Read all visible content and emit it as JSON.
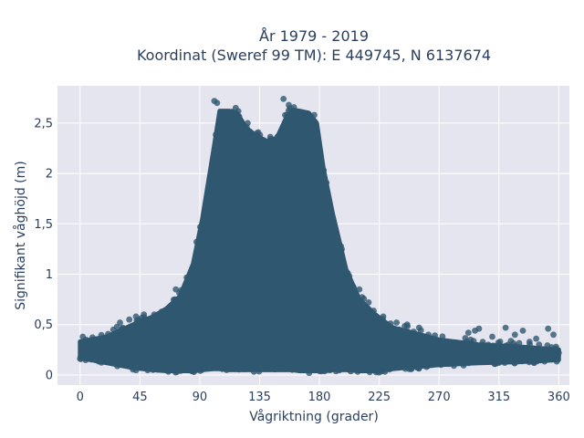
{
  "chart_data": {
    "type": "scatter",
    "title": "År 1979 - 2019",
    "subtitle": "Koordinat (Sweref 99 TM): E 449745, N 6137674",
    "xlabel": "Vågriktning (grader)",
    "ylabel": "Signifikant våghöjd (m)",
    "xlim": [
      -17,
      368
    ],
    "ylim": [
      -0.1,
      2.87
    ],
    "x_ticks": [
      0,
      45,
      90,
      135,
      180,
      225,
      270,
      315,
      360
    ],
    "x_tick_labels": [
      "0",
      "45",
      "90",
      "135",
      "180",
      "225",
      "270",
      "315",
      "360"
    ],
    "y_ticks": [
      0,
      0.5,
      1,
      1.5,
      2,
      2.5
    ],
    "y_tick_labels": [
      "0",
      "0,5",
      "1",
      "1,5",
      "2",
      "2,5"
    ],
    "grid": true,
    "colors": {
      "marker": "#2f5870",
      "plot_background": "#e5e5f0",
      "text": "#2a3f5f"
    },
    "envelope": {
      "x": [
        0,
        20,
        40,
        55,
        65,
        75,
        85,
        92,
        100,
        105,
        112,
        118,
        125,
        132,
        140,
        148,
        155,
        160,
        165,
        172,
        178,
        183,
        190,
        200,
        210,
        222,
        235,
        250,
        270,
        300,
        330,
        360
      ],
      "y_max": [
        0.33,
        0.38,
        0.5,
        0.58,
        0.66,
        0.78,
        1.1,
        1.55,
        2.2,
        2.62,
        2.62,
        2.6,
        2.45,
        2.38,
        2.32,
        2.35,
        2.55,
        2.63,
        2.62,
        2.6,
        2.5,
        2.05,
        1.6,
        1.05,
        0.75,
        0.6,
        0.47,
        0.42,
        0.35,
        0.3,
        0.28,
        0.25
      ],
      "y_min": [
        0.17,
        0.12,
        0.07,
        0.05,
        0.04,
        0.04,
        0.04,
        0.05,
        0.06,
        0.06,
        0.05,
        0.05,
        0.05,
        0.05,
        0.05,
        0.05,
        0.05,
        0.05,
        0.04,
        0.04,
        0.04,
        0.04,
        0.05,
        0.05,
        0.04,
        0.04,
        0.06,
        0.08,
        0.1,
        0.12,
        0.13,
        0.15
      ]
    },
    "outlier_points": [
      {
        "x": 2,
        "y": 0.38
      },
      {
        "x": 8,
        "y": 0.3
      },
      {
        "x": 25,
        "y": 0.45
      },
      {
        "x": 30,
        "y": 0.52
      },
      {
        "x": 37,
        "y": 0.55
      },
      {
        "x": 42,
        "y": 0.58
      },
      {
        "x": 48,
        "y": 0.6
      },
      {
        "x": 72,
        "y": 0.85
      },
      {
        "x": 101,
        "y": 2.72
      },
      {
        "x": 103,
        "y": 2.7
      },
      {
        "x": 117,
        "y": 2.65
      },
      {
        "x": 126,
        "y": 2.5
      },
      {
        "x": 153,
        "y": 2.74
      },
      {
        "x": 157,
        "y": 2.68
      },
      {
        "x": 210,
        "y": 0.85
      },
      {
        "x": 217,
        "y": 0.72
      },
      {
        "x": 228,
        "y": 0.58
      },
      {
        "x": 238,
        "y": 0.52
      },
      {
        "x": 246,
        "y": 0.5
      },
      {
        "x": 255,
        "y": 0.47
      },
      {
        "x": 262,
        "y": 0.4
      },
      {
        "x": 283,
        "y": 0.32
      },
      {
        "x": 292,
        "y": 0.42
      },
      {
        "x": 297,
        "y": 0.44
      },
      {
        "x": 300,
        "y": 0.46
      },
      {
        "x": 310,
        "y": 0.38
      },
      {
        "x": 320,
        "y": 0.47
      },
      {
        "x": 327,
        "y": 0.4
      },
      {
        "x": 333,
        "y": 0.44
      },
      {
        "x": 338,
        "y": 0.33
      },
      {
        "x": 343,
        "y": 0.36
      },
      {
        "x": 352,
        "y": 0.46
      },
      {
        "x": 356,
        "y": 0.4
      },
      {
        "x": 358,
        "y": 0.28
      },
      {
        "x": 360,
        "y": 0.22
      }
    ]
  }
}
